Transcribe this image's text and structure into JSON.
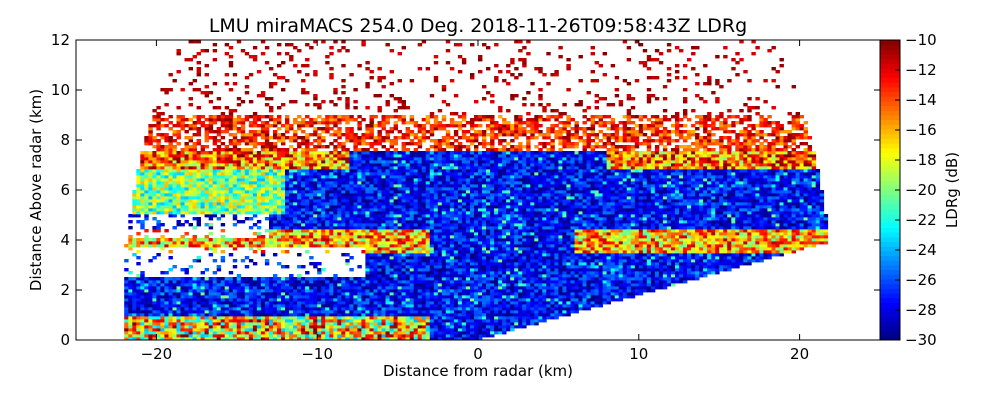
{
  "chart_data": {
    "type": "heatmap",
    "title": "LMU miraMACS 254.0 Deg. 2018-11-26T09:58:43Z  LDRg",
    "xlabel": "Distance from radar (km)",
    "ylabel": "Distance Above radar  (km)",
    "xlim": [
      -25,
      25
    ],
    "ylim": [
      0,
      12
    ],
    "xticks": [
      -20,
      -10,
      0,
      10,
      20
    ],
    "yticks": [
      0,
      2,
      4,
      6,
      8,
      10,
      12
    ],
    "colorbar": {
      "label": "LDRg (dB)",
      "range": [
        -30,
        -10
      ],
      "ticks": [
        -30,
        -28,
        -26,
        -24,
        -22,
        -20,
        -18,
        -16,
        -14,
        -12,
        -10
      ],
      "colormap": "jet"
    },
    "features": [
      {
        "name": "low-level band",
        "x_range": [
          -22,
          0
        ],
        "y_range": [
          0,
          1
        ],
        "ldr_range": [
          -22,
          -12
        ]
      },
      {
        "name": "main cloud core",
        "x_range": [
          -20,
          21
        ],
        "y_range": [
          0.5,
          7
        ],
        "ldr_range": [
          -30,
          -26
        ]
      },
      {
        "name": "melting layer left",
        "x_range": [
          -22,
          -3
        ],
        "y_range": [
          3.5,
          4.5
        ],
        "ldr_range": [
          -20,
          -12
        ]
      },
      {
        "name": "melting layer right",
        "x_range": [
          6,
          22
        ],
        "y_range": [
          3.5,
          4.5
        ],
        "ldr_range": [
          -20,
          -12
        ]
      },
      {
        "name": "upper cloud edge",
        "x_range": [
          -21,
          21
        ],
        "y_range": [
          7,
          9
        ],
        "ldr_range": [
          -16,
          -10
        ]
      },
      {
        "name": "sparse returns",
        "x_range": [
          -20,
          20
        ],
        "y_range": [
          9,
          12
        ],
        "ldr_range": [
          -12,
          -10
        ]
      }
    ]
  }
}
